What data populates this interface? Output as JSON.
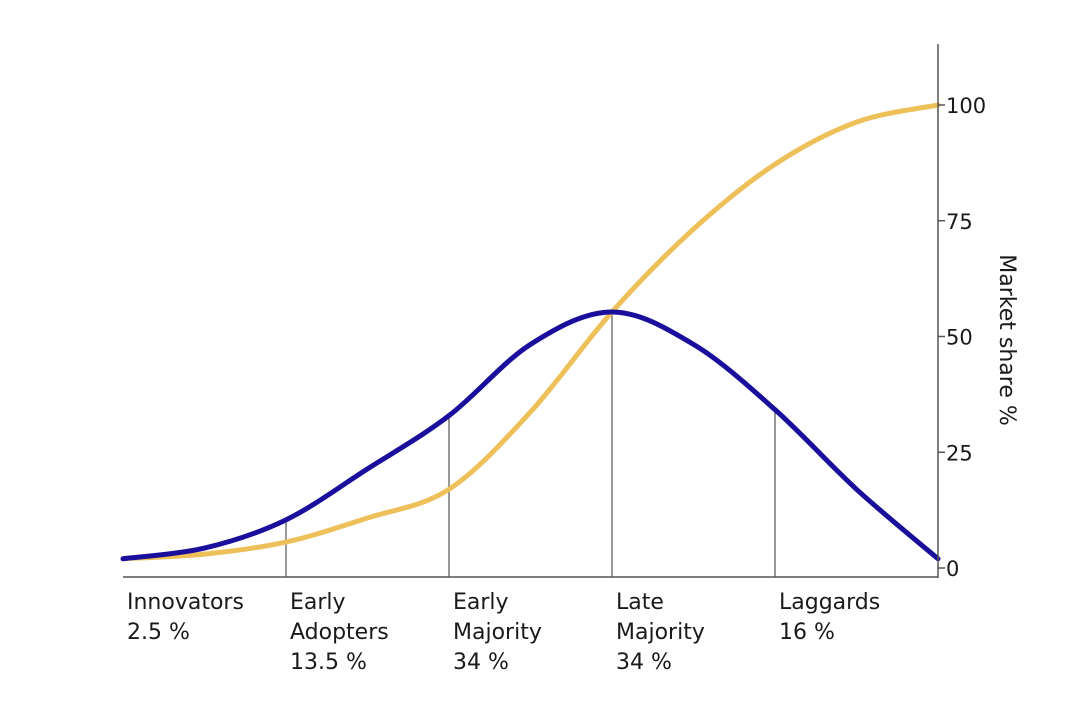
{
  "chart_data": {
    "type": "line",
    "ylabel": "Market share %",
    "ylim": [
      0,
      100
    ],
    "y_axis_position": "right",
    "y_ticks": [
      "0",
      "25",
      "50",
      "75",
      "100"
    ],
    "xlim": [
      -3,
      2
    ],
    "grid": false,
    "legend": "none",
    "dividers_sd": [
      -2,
      -1,
      0,
      1
    ],
    "categories": [
      {
        "lines": [
          "Innovators",
          "2.5 %"
        ]
      },
      {
        "lines": [
          "Early",
          "Adopters",
          "13.5 %"
        ]
      },
      {
        "lines": [
          "Early",
          "Majority",
          "34 %"
        ]
      },
      {
        "lines": [
          "Late",
          "Majority",
          "34 %"
        ]
      },
      {
        "lines": [
          "Laggards",
          "16 %"
        ]
      }
    ],
    "series": [
      {
        "color": "#1a0f9c",
        "x": [
          -3,
          -2.5,
          -2,
          -1.5,
          -1,
          -0.5,
          0,
          0.5,
          1,
          1.5,
          2
        ],
        "values": [
          2,
          4.3,
          10.4,
          21.4,
          32.9,
          48.3,
          55.3,
          48.3,
          34.2,
          17.0,
          2.0
        ]
      },
      {
        "color": "#eec05a",
        "x": [
          -3,
          -2.5,
          -2,
          -1.5,
          -1,
          -0.5,
          0,
          0.5,
          1,
          1.5,
          2
        ],
        "values": [
          2,
          3.0,
          5.6,
          10.8,
          17.0,
          33.7,
          55.3,
          73.2,
          87.2,
          96.3,
          100
        ]
      }
    ]
  }
}
